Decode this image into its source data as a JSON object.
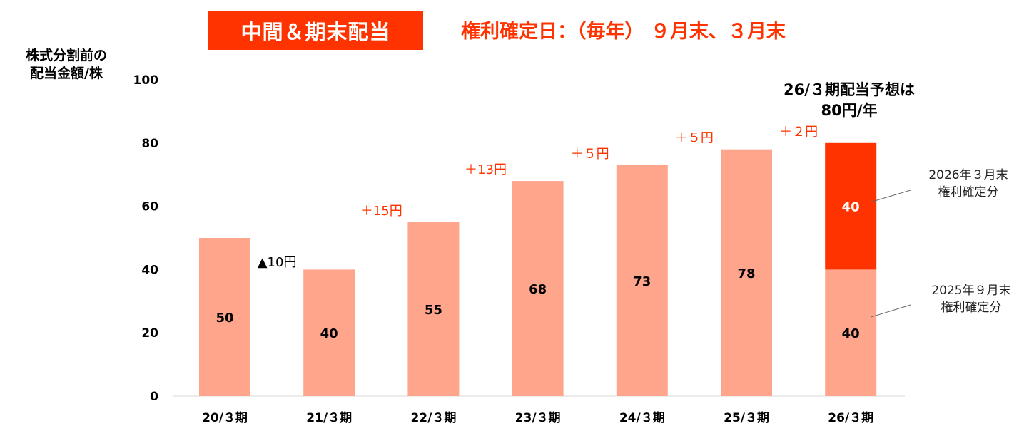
{
  "header": {
    "title": "中間＆期末配当",
    "record_date": "権利確定日：（毎年） ９月末、３月末"
  },
  "y_axis_label": [
    "株式分割前の",
    "配当金額/株"
  ],
  "forecast_note": [
    "26/３期配当予想は",
    "80円/年"
  ],
  "annotations": {
    "top": [
      "2026年３月末",
      "権利確定分"
    ],
    "bottom": [
      "2025年９月末",
      "権利確定分"
    ]
  },
  "colors": {
    "accent": "#FF3300",
    "bar": "#FFA58C",
    "bar_highlight": "#FF3300",
    "decrease_label": "#000000",
    "increase_label": "#FF3300"
  },
  "chart_data": {
    "type": "bar",
    "stacked": true,
    "categories": [
      "20/３期",
      "21/３期",
      "22/３期",
      "23/３期",
      "24/３期",
      "25/３期",
      "26/３期"
    ],
    "series": [
      {
        "values": [
          50,
          40,
          55,
          68,
          73,
          78,
          40
        ]
      },
      {
        "values": [
          0,
          0,
          0,
          0,
          0,
          0,
          40
        ]
      }
    ],
    "totals": [
      50,
      40,
      55,
      68,
      73,
      78,
      80
    ],
    "changes": [
      "▲10円",
      "＋15円",
      "＋13円",
      "＋５円",
      "＋５円",
      "＋２円"
    ],
    "ylim": [
      0,
      100
    ],
    "yticks": [
      0,
      20,
      40,
      60,
      80,
      100
    ],
    "grid": false,
    "legend": "none"
  }
}
